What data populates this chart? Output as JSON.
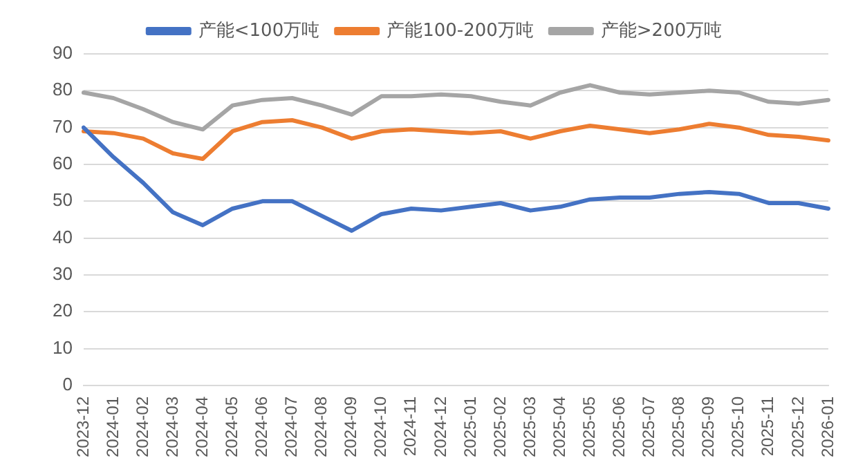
{
  "chart_data": {
    "type": "line",
    "categories": [
      "2023-12",
      "2024-01",
      "2024-02",
      "2024-03",
      "2024-04",
      "2024-05",
      "2024-06",
      "2024-07",
      "2024-08",
      "2024-09",
      "2024-10",
      "2024-11",
      "2024-12",
      "2025-01",
      "2025-02",
      "2025-03",
      "2025-04",
      "2025-05",
      "2025-06",
      "2025-07",
      "2025-08",
      "2025-09",
      "2025-10",
      "2025-11",
      "2025-12",
      "2026-01"
    ],
    "series": [
      {
        "name": "产能<100万吨",
        "color": "#4472c4",
        "values": [
          70,
          62,
          55,
          47,
          43.5,
          48,
          50,
          50,
          46,
          42,
          46.5,
          48,
          47.5,
          48.5,
          49.5,
          47.5,
          48.5,
          50.5,
          51,
          51,
          52,
          52.5,
          52,
          49.5,
          49.5,
          48
        ]
      },
      {
        "name": "产能100-200万吨",
        "color": "#ed7d31",
        "values": [
          69,
          68.5,
          67,
          63,
          61.5,
          69,
          71.5,
          72,
          70,
          67,
          69,
          69.5,
          69,
          68.5,
          69,
          67,
          69,
          70.5,
          69.5,
          68.5,
          69.5,
          71,
          70,
          68,
          67.5,
          66.5
        ]
      },
      {
        "name": "产能>200万吨",
        "color": "#a5a5a5",
        "values": [
          79.5,
          78,
          75,
          71.5,
          69.5,
          76,
          77.5,
          78,
          76,
          73.5,
          78.5,
          78.5,
          79,
          78.5,
          77,
          76,
          79.5,
          81.5,
          79.5,
          79,
          79.5,
          80,
          79.5,
          77,
          76.5,
          77.5
        ]
      }
    ],
    "ylim": [
      0,
      90
    ],
    "yticks": [
      0,
      10,
      20,
      30,
      40,
      50,
      60,
      70,
      80,
      90
    ],
    "grid": "y",
    "legend": "top",
    "marker": "none",
    "line_style": "solid"
  }
}
